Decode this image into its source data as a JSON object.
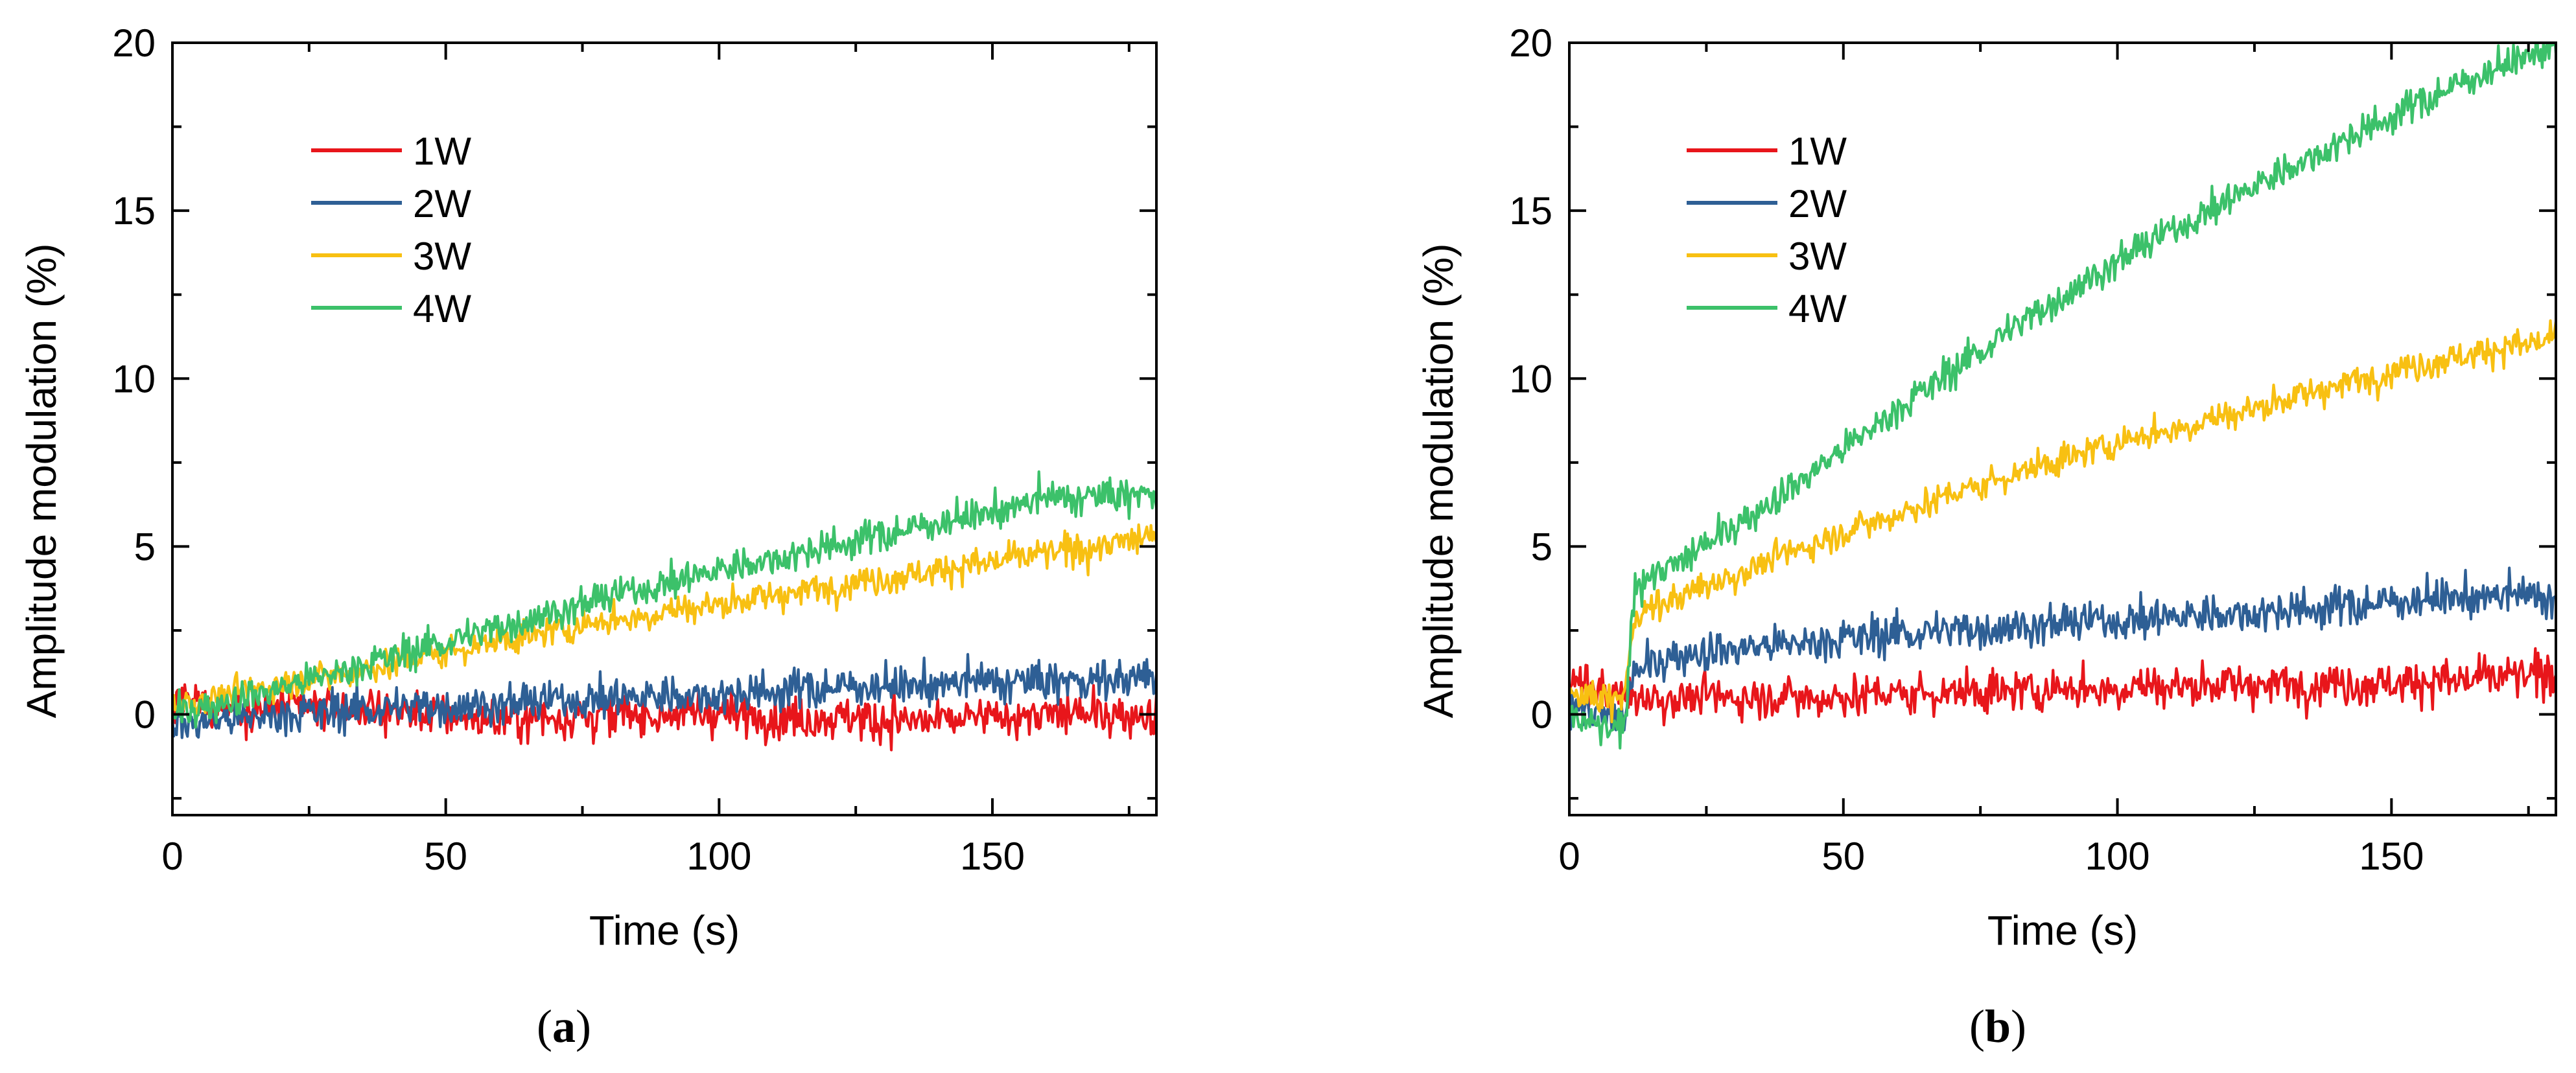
{
  "chart_data": [
    {
      "type": "line",
      "panel_label": "(a)",
      "panel_letter": "a",
      "title": "",
      "xlabel": "Time (s)",
      "ylabel": "Amplitude modulation (%)",
      "xlim": [
        0,
        180
      ],
      "ylim": [
        -3,
        20
      ],
      "xticks": [
        0,
        50,
        100,
        150
      ],
      "yticks": [
        0,
        5,
        10,
        15,
        20
      ],
      "grid": false,
      "legend_position": "top-left",
      "series": [
        {
          "name": "1W",
          "color": "#e8161b",
          "x": [
            0,
            20,
            40,
            60,
            80,
            100,
            120,
            140,
            160,
            180
          ],
          "y": [
            0.3,
            0.2,
            0.1,
            -0.2,
            0.0,
            0.0,
            -0.1,
            -0.2,
            0.0,
            0.0
          ]
        },
        {
          "name": "2W",
          "color": "#2e5f95",
          "x": [
            0,
            20,
            40,
            60,
            80,
            100,
            120,
            140,
            160,
            180
          ],
          "y": [
            -0.3,
            0.0,
            0.2,
            0.3,
            0.5,
            0.6,
            0.8,
            0.9,
            1.0,
            1.1
          ]
        },
        {
          "name": "3W",
          "color": "#f8c012",
          "x": [
            0,
            20,
            40,
            60,
            80,
            100,
            120,
            140,
            160,
            180
          ],
          "y": [
            0.3,
            0.9,
            1.5,
            2.2,
            2.8,
            3.3,
            3.8,
            4.3,
            4.8,
            5.3
          ]
        },
        {
          "name": "4W",
          "color": "#3cc16a",
          "x": [
            0,
            20,
            40,
            60,
            80,
            100,
            120,
            140,
            160,
            180
          ],
          "y": [
            0.0,
            0.8,
            1.7,
            2.6,
            3.5,
            4.3,
            5.0,
            5.7,
            6.4,
            6.6
          ]
        }
      ]
    },
    {
      "type": "line",
      "panel_label": "(b)",
      "panel_letter": "b",
      "title": "",
      "xlabel": "Time (s)",
      "ylabel": "Amplitude modulation (%)",
      "xlim": [
        0,
        180
      ],
      "ylim": [
        -3,
        20
      ],
      "xticks": [
        0,
        50,
        100,
        150
      ],
      "yticks": [
        0,
        5,
        10,
        15,
        20
      ],
      "grid": false,
      "legend_position": "top-left",
      "series": [
        {
          "name": "1W",
          "color": "#e8161b",
          "x": [
            0,
            5,
            10,
            12,
            20,
            40,
            60,
            80,
            100,
            120,
            140,
            160,
            180
          ],
          "y": [
            1.0,
            0.8,
            0.5,
            0.5,
            0.5,
            0.5,
            0.6,
            0.7,
            0.8,
            0.9,
            0.9,
            1.0,
            1.2
          ]
        },
        {
          "name": "2W",
          "color": "#2e5f95",
          "x": [
            0,
            5,
            10,
            12,
            20,
            40,
            60,
            80,
            100,
            120,
            140,
            160,
            180
          ],
          "y": [
            0.5,
            0.0,
            -0.2,
            1.3,
            1.8,
            2.1,
            2.4,
            2.6,
            2.8,
            3.0,
            3.2,
            3.5,
            3.5
          ]
        },
        {
          "name": "3W",
          "color": "#f8c012",
          "x": [
            0,
            5,
            10,
            12,
            20,
            40,
            60,
            80,
            100,
            120,
            140,
            160,
            180
          ],
          "y": [
            0.5,
            0.5,
            0.5,
            3.0,
            3.5,
            4.8,
            6.0,
            7.1,
            8.1,
            8.9,
            9.8,
            10.6,
            11.2
          ]
        },
        {
          "name": "4W",
          "color": "#3cc16a",
          "x": [
            0,
            5,
            10,
            12,
            20,
            40,
            60,
            80,
            100,
            120,
            140,
            160,
            180
          ],
          "y": [
            0.0,
            -0.4,
            -0.5,
            4.0,
            4.5,
            6.7,
            9.1,
            11.4,
            13.5,
            15.3,
            17.0,
            18.6,
            20.0
          ]
        }
      ]
    }
  ]
}
